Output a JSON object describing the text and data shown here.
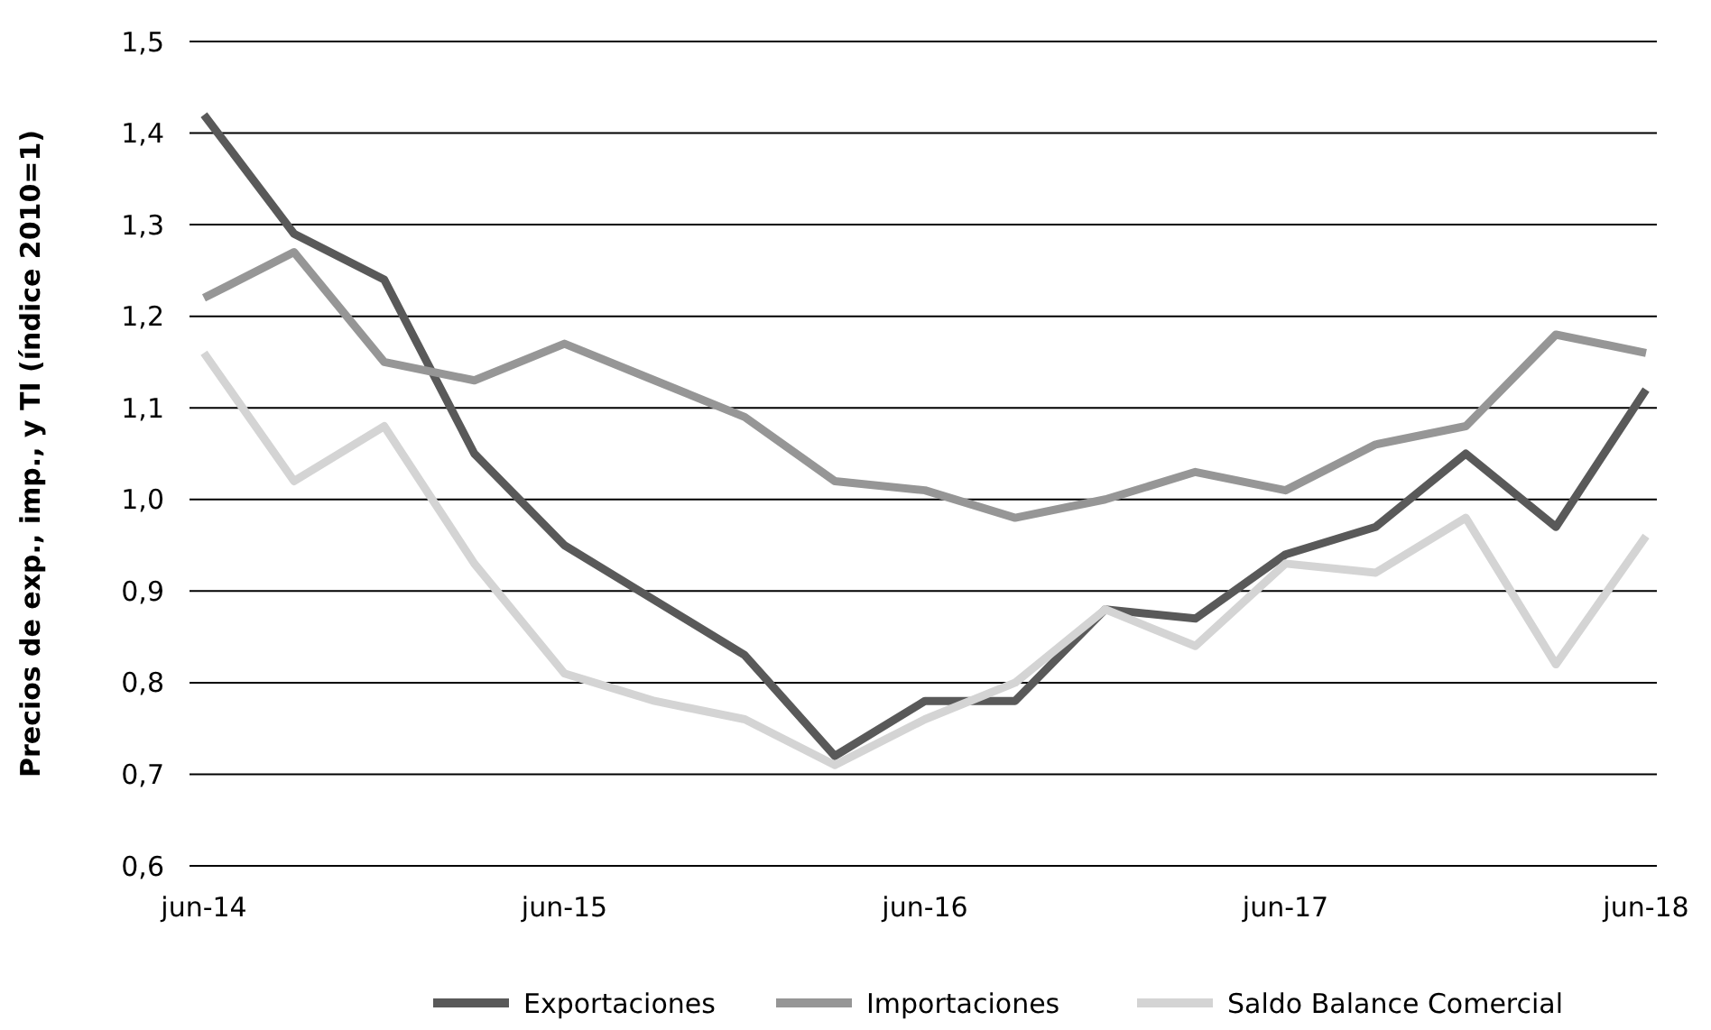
{
  "chart_data": {
    "type": "line",
    "ylabel": "Precios de exp., imp., y TI (índice 2010=1)",
    "categories": [
      "jun-14",
      null,
      null,
      null,
      "jun-15",
      null,
      null,
      null,
      "jun-16",
      null,
      null,
      null,
      "jun-17",
      null,
      null,
      null,
      "jun-18"
    ],
    "series": [
      {
        "name": "Exportaciones",
        "color": "#595959",
        "values": [
          1.42,
          1.29,
          1.24,
          1.05,
          0.95,
          0.89,
          0.83,
          0.72,
          0.78,
          0.78,
          0.88,
          0.87,
          0.94,
          0.97,
          1.05,
          0.97,
          1.12
        ]
      },
      {
        "name": "Importaciones",
        "color": "#969696",
        "values": [
          1.22,
          1.27,
          1.15,
          1.13,
          1.17,
          1.13,
          1.09,
          1.02,
          1.01,
          0.98,
          1.0,
          1.03,
          1.01,
          1.06,
          1.08,
          1.18,
          1.16
        ]
      },
      {
        "name": "Saldo Balance Comercial",
        "color": "#d4d4d4",
        "values": [
          1.16,
          1.02,
          1.08,
          0.93,
          0.81,
          0.78,
          0.76,
          0.71,
          0.76,
          0.8,
          0.88,
          0.84,
          0.93,
          0.92,
          0.98,
          0.82,
          0.96
        ]
      }
    ],
    "ylim": [
      0.6,
      1.5
    ],
    "yticks": [
      {
        "value": 0.6,
        "label": "0,6"
      },
      {
        "value": 0.7,
        "label": "0,7"
      },
      {
        "value": 0.8,
        "label": "0,8"
      },
      {
        "value": 0.9,
        "label": "0,9"
      },
      {
        "value": 1.0,
        "label": "1,0"
      },
      {
        "value": 1.1,
        "label": "1,1"
      },
      {
        "value": 1.2,
        "label": "1,2"
      },
      {
        "value": 1.3,
        "label": "1,3"
      },
      {
        "value": 1.4,
        "label": "1,4"
      },
      {
        "value": 1.5,
        "label": "1,5"
      }
    ],
    "grid": "y",
    "legend": "bottom",
    "marker": "none",
    "line_style": "solid"
  }
}
